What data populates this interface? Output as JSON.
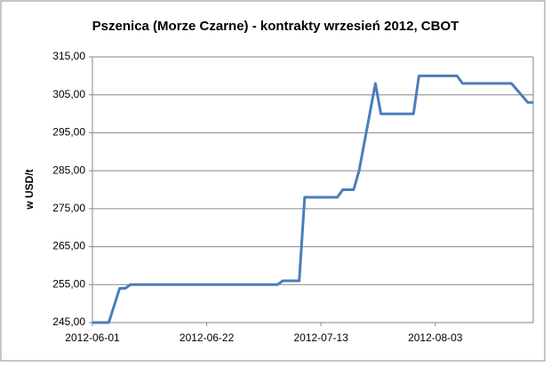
{
  "chart_data": {
    "type": "line",
    "title": "Pszenica (Morze Czarne) - kontrakty wrzesień 2012, CBOT",
    "y_label": "w USD/t",
    "x": [
      "2012-06-01",
      "2012-06-04",
      "2012-06-06",
      "2012-06-07",
      "2012-06-08",
      "2012-07-05",
      "2012-07-06",
      "2012-07-09",
      "2012-07-10",
      "2012-07-16",
      "2012-07-17",
      "2012-07-19",
      "2012-07-20",
      "2012-07-23",
      "2012-07-24",
      "2012-07-30",
      "2012-07-31",
      "2012-08-07",
      "2012-08-08",
      "2012-08-17",
      "2012-08-20",
      "2012-08-21"
    ],
    "series": [
      {
        "name": "Pszenica",
        "color": "#4a7ebb",
        "values": [
          245,
          245,
          254,
          254,
          255,
          255,
          256,
          256,
          278,
          278,
          280,
          280,
          285,
          308,
          300,
          300,
          310,
          310,
          308,
          308,
          303,
          303
        ]
      }
    ],
    "xlim": [
      "2012-06-01",
      "2012-08-21"
    ],
    "xticks": [
      "2012-06-01",
      "2012-06-22",
      "2012-07-13",
      "2012-08-03"
    ],
    "ylim": [
      245,
      315
    ],
    "yticks": [
      {
        "value": 245,
        "label": "245,00"
      },
      {
        "value": 255,
        "label": "255,00"
      },
      {
        "value": 265,
        "label": "265,00"
      },
      {
        "value": 275,
        "label": "275,00"
      },
      {
        "value": 285,
        "label": "285,00"
      },
      {
        "value": 295,
        "label": "295,00"
      },
      {
        "value": 305,
        "label": "305,00"
      },
      {
        "value": 315,
        "label": "315,00"
      }
    ],
    "grid": true
  }
}
